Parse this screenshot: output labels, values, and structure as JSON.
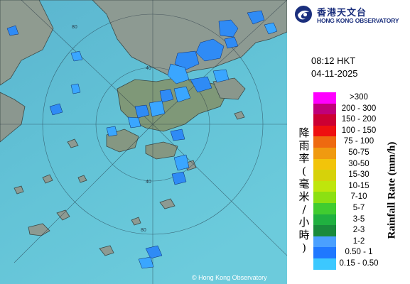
{
  "organization": {
    "name_zh": "香港天文台",
    "name_en": "HONG KONG OBSERVATORY"
  },
  "radar": {
    "time": "08:12 HKT",
    "date": "04-11-2025",
    "range_ring_labels": [
      "40",
      "80",
      "40",
      "80"
    ],
    "copyright": "© Hong Kong Observatory"
  },
  "legend": {
    "axis_label_zh": [
      "降",
      "雨",
      "率",
      "(",
      "毫",
      "米",
      "/",
      "小",
      "時",
      ")"
    ],
    "axis_label_en": "Rainfall Rate (mm/h)",
    "items": [
      {
        "label": ">300",
        "color": "#ff00ff"
      },
      {
        "label": "200 - 300",
        "color": "#c0007a"
      },
      {
        "label": "150 - 200",
        "color": "#cc0033"
      },
      {
        "label": "100 - 150",
        "color": "#ee1010"
      },
      {
        "label": "75 - 100",
        "color": "#ee6a10"
      },
      {
        "label": "50-75",
        "color": "#f09a10"
      },
      {
        "label": "30-50",
        "color": "#f2c40a"
      },
      {
        "label": "15-30",
        "color": "#d6d20a"
      },
      {
        "label": "10-15",
        "color": "#bfe60c"
      },
      {
        "label": "7-10",
        "color": "#8ce012"
      },
      {
        "label": "5-7",
        "color": "#40cc30"
      },
      {
        "label": "3-5",
        "color": "#20b040"
      },
      {
        "label": "2-3",
        "color": "#1a8a3c"
      },
      {
        "label": "1-2",
        "color": "#4aa0ff"
      },
      {
        "label": "0.50 - 1",
        "color": "#1f78ff"
      },
      {
        "label": "0.15 - 0.50",
        "color": "#3cc8ff"
      }
    ]
  }
}
